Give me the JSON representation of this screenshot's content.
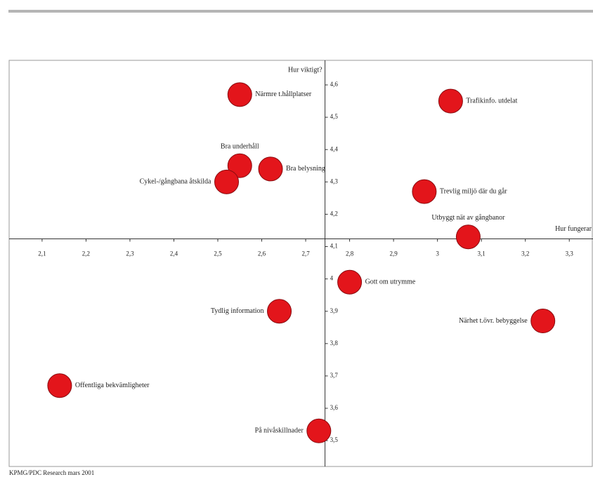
{
  "chart_data": {
    "type": "scatter",
    "x_label": "Hur fungerar",
    "y_label": "Hur viktigt?",
    "source": "KPMG/PDC Research mars 2001",
    "color": "#e3151b",
    "point_labels": [
      "Närmre t.hållplatser",
      "Trafikinfo. utdelat",
      "Bra underhåll",
      "Bra belysning",
      "Cykel-/gångbana åtskilda",
      "Trevlig miljö där du går",
      "Utbyggt nät av gångbanor",
      "Gott om utrymme",
      "Tydlig information",
      "Närhet t.övr. bebyggelse",
      "Offentliga bekvämligheter",
      "På nivåskillnader"
    ],
    "x": [
      2.55,
      3.03,
      2.55,
      2.62,
      2.52,
      2.97,
      3.07,
      2.8,
      2.64,
      3.24,
      2.14,
      2.73
    ],
    "values": [
      4.57,
      4.55,
      4.35,
      4.34,
      4.3,
      4.27,
      4.13,
      3.99,
      3.9,
      3.87,
      3.67,
      3.53
    ],
    "xlim": [
      2.025,
      3.354
    ],
    "ylim": [
      3.42,
      4.676
    ],
    "axis_cross": [
      2.744,
      4.124
    ],
    "xticks": [
      {
        "value": 2.1,
        "label": "2,1"
      },
      {
        "value": 2.2,
        "label": "2,2"
      },
      {
        "value": 2.3,
        "label": "2,3"
      },
      {
        "value": 2.4,
        "label": "2,4"
      },
      {
        "value": 2.5,
        "label": "2,5"
      },
      {
        "value": 2.6,
        "label": "2,6"
      },
      {
        "value": 2.7,
        "label": "2,7"
      },
      {
        "value": 2.8,
        "label": "2,8"
      },
      {
        "value": 2.9,
        "label": "2,9"
      },
      3,
      {
        "value": 3.1,
        "label": "3,1"
      },
      {
        "value": 3.2,
        "label": "3,2"
      },
      {
        "value": 3.3,
        "label": "3,3"
      }
    ],
    "yticks": [
      {
        "value": 3.5,
        "label": "3,5"
      },
      {
        "value": 3.6,
        "label": "3,6"
      },
      {
        "value": 3.7,
        "label": "3,7"
      },
      {
        "value": 3.8,
        "label": "3,8"
      },
      {
        "value": 3.9,
        "label": "3,9"
      },
      4,
      {
        "value": 4.1,
        "label": "4,1"
      },
      {
        "value": 4.2,
        "label": "4,2"
      },
      {
        "value": 4.3,
        "label": "4,3"
      },
      {
        "value": 4.4,
        "label": "4,4"
      },
      {
        "value": 4.5,
        "label": "4,5"
      },
      {
        "value": 4.6,
        "label": "4,6"
      }
    ]
  }
}
